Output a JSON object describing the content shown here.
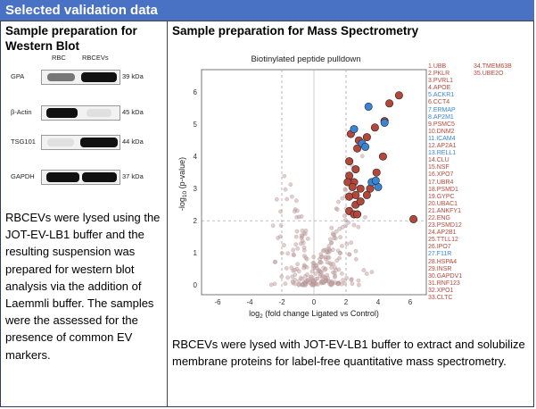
{
  "header": {
    "title": "Selected validation data"
  },
  "left": {
    "title_line1": "Sample preparation for",
    "title_line2": "Western Blot",
    "columns": [
      "RBC",
      "RBCEVs"
    ],
    "blots": [
      {
        "label": "GPA",
        "kda": "39 kDa"
      },
      {
        "label": "β-Actin",
        "kda": "45 kDa"
      },
      {
        "label": "TSG101",
        "kda": "44 kDa"
      },
      {
        "label": "GAPDH",
        "kda": "37 kDa"
      }
    ],
    "paragraph": "RBCEVs were lysed using the JOT-EV-LB1 buffer and the resulting suspension was prepared for western blot analysis via the addition of Laemmli buffer. The samples were the assessed for the presence of common EV markers."
  },
  "right": {
    "title": "Sample preparation for Mass Spectrometry",
    "paragraph": "RBCEVs were lysed with JOT-EV-LB1 buffer to extract and solubilize membrane proteins for label-free quantitative mass spectrometry."
  },
  "colors": {
    "header": "#4a72c4",
    "red": "#b5473a",
    "blue": "#3a84d6",
    "gray": "#c9a6a6"
  },
  "chart_data": {
    "type": "scatter",
    "title": "Biotinylated peptide pulldown",
    "xlabel": "log2 (fold change Ligated vs Control)",
    "ylabel": "-log10 (p-value)",
    "xlim": [
      -7,
      7
    ],
    "ylim": [
      -0.3,
      6.7
    ],
    "xticks": [
      "-6",
      "-4",
      "-2",
      "0",
      "2",
      "4",
      "6"
    ],
    "yticks": [
      "0",
      "1",
      "2",
      "3",
      "4",
      "5",
      "6"
    ],
    "reference_lines": {
      "x": [
        -2,
        2
      ],
      "y": [
        2
      ]
    },
    "series": [
      {
        "color": "red",
        "points": [
          [
            5.3,
            5.9
          ],
          [
            4.7,
            5.65
          ],
          [
            4.4,
            5.1
          ],
          [
            3.8,
            4.9
          ],
          [
            2.3,
            4.7
          ],
          [
            3.3,
            4.6
          ],
          [
            2.8,
            4.5
          ],
          [
            2.7,
            4.25
          ],
          [
            4.3,
            4.0
          ],
          [
            2.2,
            3.85
          ],
          [
            3.9,
            3.5
          ],
          [
            2.2,
            3.4
          ],
          [
            2.6,
            3.6
          ],
          [
            2.5,
            3.2
          ],
          [
            2.1,
            3.2
          ],
          [
            2.9,
            3.0
          ],
          [
            3.5,
            3.0
          ],
          [
            2.4,
            3.05
          ],
          [
            3.3,
            2.8
          ],
          [
            2.6,
            2.8
          ],
          [
            2.2,
            2.75
          ],
          [
            2.6,
            2.5
          ],
          [
            2.9,
            2.6
          ],
          [
            2.2,
            2.3
          ],
          [
            2.5,
            2.2
          ],
          [
            2.7,
            2.2
          ],
          [
            6.2,
            2.05
          ]
        ]
      },
      {
        "color": "blue",
        "points": [
          [
            3.4,
            5.55
          ],
          [
            2.5,
            4.85
          ],
          [
            4.4,
            5.05
          ],
          [
            3.0,
            4.4
          ],
          [
            3.2,
            4.3
          ],
          [
            3.6,
            3.2
          ],
          [
            4.0,
            3.05
          ],
          [
            3.85,
            3.25
          ]
        ]
      }
    ],
    "labels_col1": [
      "1.UBB",
      "2.PKLR",
      "3.PVRL1",
      "4.APOE",
      "5.ACKR1",
      "6.CCT4",
      "7.ERMAP",
      "8.AP2M1",
      "9.PSMC5",
      "10.DNM2",
      "11.ICAM4",
      "12.AP2A1",
      "13.RELL1",
      "14.CLU",
      "15.NSF",
      "16.XPO7",
      "17.UBR4",
      "18.PSMD1",
      "19.GYPC",
      "20.UBAC1",
      "21.ANKFY1",
      "22.ENG",
      "23.PSMD12",
      "24.AP2B1",
      "25.TTLL12",
      "26.IPO7",
      "27.F11R",
      "28.HSPA4",
      "29.INSR",
      "30.GAPDV1",
      "31.RNF123",
      "32.XPO1",
      "33.CLTC"
    ],
    "labels_col1_blue": [
      5,
      7,
      8,
      11,
      13,
      27
    ],
    "labels_col2": [
      "34.TMEM63B",
      "35.UBE2O"
    ]
  }
}
